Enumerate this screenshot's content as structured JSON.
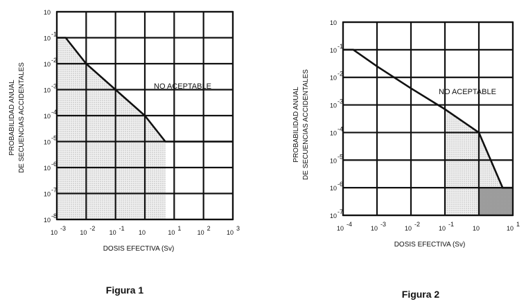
{
  "chart_data": [
    {
      "type": "line",
      "caption": "Figura 1",
      "xlabel": "DOSIS EFECTIVA (Sv)",
      "ylabel_lines": [
        "PROBABILIDAD ANUAL",
        "DE SECUENCIAS ACCIDENTALES"
      ],
      "annotation": "NO ACEPTABLE",
      "x_scale": "log",
      "y_scale": "log",
      "xlim": [
        0.001,
        1000
      ],
      "ylim": [
        1e-08,
        1
      ],
      "x_tick_values": [
        0.001,
        0.01,
        0.1,
        1,
        10,
        100,
        1000
      ],
      "x_tick_labels": [
        "10",
        "10",
        "10",
        "10",
        "10",
        "10",
        "10"
      ],
      "x_tick_exponents": [
        "-3",
        "-2",
        "-1",
        "",
        "1",
        "2",
        "3"
      ],
      "y_tick_values": [
        1,
        0.1,
        0.01,
        0.001,
        0.0001,
        1e-05,
        1e-06,
        1e-07,
        1e-08
      ],
      "y_tick_labels": [
        "10",
        "10",
        "10",
        "10",
        "10",
        "10",
        "10",
        "10",
        "10"
      ],
      "y_tick_exponents": [
        "",
        "-1",
        "-2",
        "-3",
        "-4",
        "-5",
        "-6",
        "-7",
        "-8"
      ],
      "grid": true,
      "series": [
        {
          "x": [
            0.001,
            0.002,
            0.01,
            0.1,
            1,
            5,
            1000
          ],
          "y": [
            0.1,
            0.1,
            0.01,
            0.001,
            0.0001,
            1e-05,
            1e-05
          ]
        }
      ],
      "shaded_region": "below the line between 10^-3 and 5 Sv"
    },
    {
      "type": "line",
      "caption": "Figura 2",
      "xlabel": "DOSIS EFECTIVA (Sv)",
      "ylabel_lines": [
        "PROBABILIDAD ANUAL",
        "DE SECUENCIAS ACCIDENTALES"
      ],
      "annotation": "NO ACEPTABLE",
      "x_scale": "log",
      "y_scale": "log",
      "xlim": [
        0.0001,
        10
      ],
      "ylim": [
        1e-07,
        1
      ],
      "x_tick_values": [
        0.0001,
        0.001,
        0.01,
        0.1,
        1,
        10
      ],
      "x_tick_labels": [
        "10",
        "10",
        "10",
        "10",
        "10",
        "10"
      ],
      "x_tick_exponents": [
        "-4",
        "-3",
        "-2",
        "-1",
        "",
        "1"
      ],
      "y_tick_values": [
        1,
        0.1,
        0.01,
        0.001,
        0.0001,
        1e-05,
        1e-06,
        1e-07
      ],
      "y_tick_labels": [
        "10",
        "10",
        "10",
        "10",
        "10",
        "10",
        "10",
        "10"
      ],
      "y_tick_exponents": [
        "",
        "-1",
        "-2",
        "-3",
        "-4",
        "-5",
        "-6",
        "-7"
      ],
      "grid": true,
      "series": [
        {
          "x": [
            0.0001,
            0.0002,
            0.001,
            0.01,
            0.1,
            1,
            5,
            10
          ],
          "y": [
            0.1,
            0.1,
            0.025,
            0.004,
            0.0007,
            0.0001,
            1e-06,
            1e-06
          ]
        }
      ],
      "shaded_region": "below the line between 0.1 and 10 Sv, darker fill between 1 and 10 Sv"
    }
  ]
}
